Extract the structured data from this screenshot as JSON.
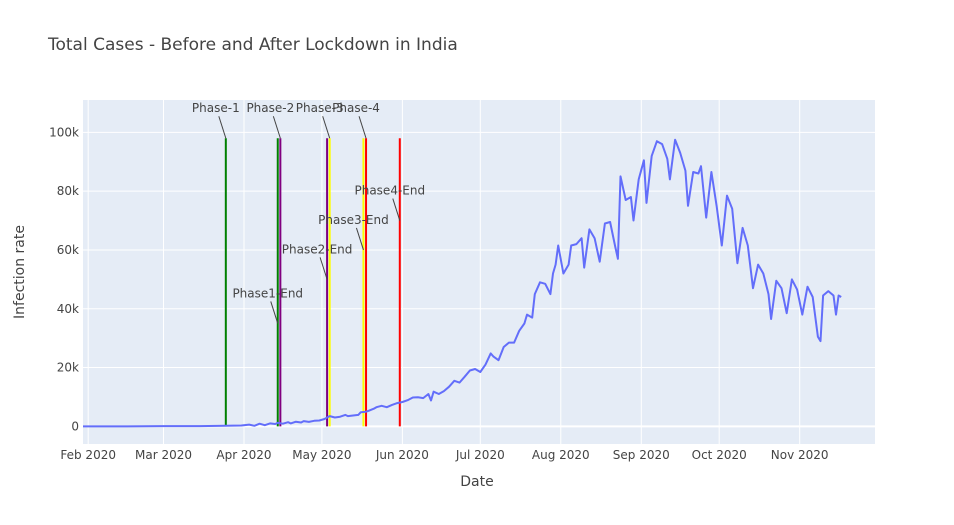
{
  "chart_data": {
    "type": "line",
    "title": "Total Cases - Before and After Lockdown in India",
    "xlabel": "Date",
    "ylabel": "Infection rate",
    "xlim": [
      "2020-01-30",
      "2020-11-30"
    ],
    "ylim": [
      -6000,
      111000
    ],
    "grid": true,
    "colors": {
      "background": "#E5ECF6",
      "series": "#636EFA",
      "grid": "#ffffff"
    },
    "x_ticks": [
      {
        "date": "2020-02-01",
        "label": "Feb 2020"
      },
      {
        "date": "2020-03-01",
        "label": "Mar 2020"
      },
      {
        "date": "2020-04-01",
        "label": "Apr 2020"
      },
      {
        "date": "2020-05-01",
        "label": "May 2020"
      },
      {
        "date": "2020-06-01",
        "label": "Jun 2020"
      },
      {
        "date": "2020-07-01",
        "label": "Jul 2020"
      },
      {
        "date": "2020-08-01",
        "label": "Aug 2020"
      },
      {
        "date": "2020-09-01",
        "label": "Sep 2020"
      },
      {
        "date": "2020-10-01",
        "label": "Oct 2020"
      },
      {
        "date": "2020-11-01",
        "label": "Nov 2020"
      }
    ],
    "y_ticks": [
      {
        "value": 0,
        "label": "0"
      },
      {
        "value": 20000,
        "label": "20k"
      },
      {
        "value": 40000,
        "label": "40k"
      },
      {
        "value": 60000,
        "label": "60k"
      },
      {
        "value": 80000,
        "label": "80k"
      },
      {
        "value": 100000,
        "label": "100k"
      }
    ],
    "series": [
      {
        "points": [
          [
            "2020-01-30",
            0
          ],
          [
            "2020-02-15",
            0
          ],
          [
            "2020-03-01",
            100
          ],
          [
            "2020-03-15",
            100
          ],
          [
            "2020-03-25",
            200
          ],
          [
            "2020-03-31",
            300
          ],
          [
            "2020-04-03",
            600
          ],
          [
            "2020-04-05",
            200
          ],
          [
            "2020-04-07",
            900
          ],
          [
            "2020-04-09",
            400
          ],
          [
            "2020-04-11",
            1000
          ],
          [
            "2020-04-13",
            800
          ],
          [
            "2020-04-14",
            1200
          ],
          [
            "2020-04-16",
            900
          ],
          [
            "2020-04-18",
            1400
          ],
          [
            "2020-04-19",
            1000
          ],
          [
            "2020-04-21",
            1600
          ],
          [
            "2020-04-23",
            1300
          ],
          [
            "2020-04-24",
            1800
          ],
          [
            "2020-04-26",
            1500
          ],
          [
            "2020-04-28",
            1900
          ],
          [
            "2020-04-30",
            2000
          ],
          [
            "2020-05-02",
            2500
          ],
          [
            "2020-05-04",
            3500
          ],
          [
            "2020-05-06",
            3000
          ],
          [
            "2020-05-08",
            3300
          ],
          [
            "2020-05-10",
            3900
          ],
          [
            "2020-05-11",
            3500
          ],
          [
            "2020-05-13",
            3700
          ],
          [
            "2020-05-15",
            3900
          ],
          [
            "2020-05-16",
            4800
          ],
          [
            "2020-05-18",
            5000
          ],
          [
            "2020-05-19",
            5300
          ],
          [
            "2020-05-21",
            6000
          ],
          [
            "2020-05-22",
            6500
          ],
          [
            "2020-05-24",
            7000
          ],
          [
            "2020-05-26",
            6500
          ],
          [
            "2020-05-28",
            7300
          ],
          [
            "2020-05-30",
            7900
          ],
          [
            "2020-06-01",
            8300
          ],
          [
            "2020-06-03",
            8900
          ],
          [
            "2020-06-05",
            9800
          ],
          [
            "2020-06-07",
            9900
          ],
          [
            "2020-06-09",
            9600
          ],
          [
            "2020-06-11",
            11000
          ],
          [
            "2020-06-12",
            8800
          ],
          [
            "2020-06-13",
            11800
          ],
          [
            "2020-06-15",
            11000
          ],
          [
            "2020-06-17",
            12000
          ],
          [
            "2020-06-19",
            13500
          ],
          [
            "2020-06-21",
            15500
          ],
          [
            "2020-06-23",
            14900
          ],
          [
            "2020-06-25",
            16900
          ],
          [
            "2020-06-27",
            19000
          ],
          [
            "2020-06-29",
            19500
          ],
          [
            "2020-07-01",
            18500
          ],
          [
            "2020-07-03",
            21000
          ],
          [
            "2020-07-05",
            24800
          ],
          [
            "2020-07-06",
            23800
          ],
          [
            "2020-07-08",
            22500
          ],
          [
            "2020-07-10",
            27000
          ],
          [
            "2020-07-12",
            28500
          ],
          [
            "2020-07-14",
            28500
          ],
          [
            "2020-07-16",
            32500
          ],
          [
            "2020-07-18",
            35000
          ],
          [
            "2020-07-19",
            38000
          ],
          [
            "2020-07-21",
            37000
          ],
          [
            "2020-07-22",
            45000
          ],
          [
            "2020-07-24",
            49000
          ],
          [
            "2020-07-26",
            48500
          ],
          [
            "2020-07-28",
            45000
          ],
          [
            "2020-07-29",
            52000
          ],
          [
            "2020-07-30",
            55000
          ],
          [
            "2020-07-31",
            61500
          ],
          [
            "2020-08-02",
            52000
          ],
          [
            "2020-08-04",
            55000
          ],
          [
            "2020-08-05",
            61500
          ],
          [
            "2020-08-07",
            62000
          ],
          [
            "2020-08-09",
            64000
          ],
          [
            "2020-08-10",
            54000
          ],
          [
            "2020-08-12",
            67000
          ],
          [
            "2020-08-14",
            64000
          ],
          [
            "2020-08-16",
            56000
          ],
          [
            "2020-08-18",
            69000
          ],
          [
            "2020-08-20",
            69500
          ],
          [
            "2020-08-22",
            61000
          ],
          [
            "2020-08-23",
            57000
          ],
          [
            "2020-08-24",
            85000
          ],
          [
            "2020-08-26",
            77000
          ],
          [
            "2020-08-28",
            78000
          ],
          [
            "2020-08-29",
            70000
          ],
          [
            "2020-08-31",
            84000
          ],
          [
            "2020-09-02",
            90500
          ],
          [
            "2020-09-03",
            76000
          ],
          [
            "2020-09-05",
            92000
          ],
          [
            "2020-09-07",
            97000
          ],
          [
            "2020-09-09",
            96000
          ],
          [
            "2020-09-11",
            91000
          ],
          [
            "2020-09-12",
            84000
          ],
          [
            "2020-09-14",
            97500
          ],
          [
            "2020-09-16",
            93000
          ],
          [
            "2020-09-18",
            87000
          ],
          [
            "2020-09-19",
            75000
          ],
          [
            "2020-09-21",
            86500
          ],
          [
            "2020-09-23",
            86000
          ],
          [
            "2020-09-24",
            88500
          ],
          [
            "2020-09-26",
            71000
          ],
          [
            "2020-09-28",
            86500
          ],
          [
            "2020-09-30",
            75000
          ],
          [
            "2020-10-02",
            61500
          ],
          [
            "2020-10-04",
            78500
          ],
          [
            "2020-10-06",
            74000
          ],
          [
            "2020-10-08",
            55500
          ],
          [
            "2020-10-10",
            67500
          ],
          [
            "2020-10-12",
            61500
          ],
          [
            "2020-10-14",
            47000
          ],
          [
            "2020-10-16",
            55000
          ],
          [
            "2020-10-18",
            52000
          ],
          [
            "2020-10-20",
            45000
          ],
          [
            "2020-10-21",
            36500
          ],
          [
            "2020-10-23",
            49500
          ],
          [
            "2020-10-25",
            47000
          ],
          [
            "2020-10-27",
            38500
          ],
          [
            "2020-10-29",
            50000
          ],
          [
            "2020-10-31",
            46500
          ],
          [
            "2020-11-02",
            38000
          ],
          [
            "2020-11-04",
            47500
          ],
          [
            "2020-11-06",
            44000
          ],
          [
            "2020-11-08",
            30500
          ],
          [
            "2020-11-09",
            29000
          ],
          [
            "2020-11-10",
            44500
          ],
          [
            "2020-11-12",
            46000
          ],
          [
            "2020-11-14",
            44500
          ],
          [
            "2020-11-15",
            38000
          ],
          [
            "2020-11-16",
            44500
          ],
          [
            "2020-11-17",
            44000
          ]
        ]
      }
    ],
    "phase_lines": [
      {
        "date": "2020-03-25",
        "color": "green"
      },
      {
        "date": "2020-04-14",
        "color": "green"
      },
      {
        "date": "2020-04-15",
        "color": "purple"
      },
      {
        "date": "2020-05-03",
        "color": "purple"
      },
      {
        "date": "2020-05-04",
        "color": "yellow"
      },
      {
        "date": "2020-05-17",
        "color": "yellow"
      },
      {
        "date": "2020-05-18",
        "color": "red"
      },
      {
        "date": "2020-05-31",
        "color": "red"
      }
    ],
    "phase_line_top": 98000,
    "annotations": [
      {
        "text": "Phase-1",
        "date": "2020-03-25",
        "y": 98000
      },
      {
        "text": "Phase-2",
        "date": "2020-04-15",
        "y": 98000
      },
      {
        "text": "Phase-3",
        "date": "2020-05-04",
        "y": 98000
      },
      {
        "text": "Phase-4",
        "date": "2020-05-18",
        "y": 98000
      },
      {
        "text": "Phase1-End",
        "date": "2020-04-14",
        "y": 35000
      },
      {
        "text": "Phase2-End",
        "date": "2020-05-03",
        "y": 50000
      },
      {
        "text": "Phase3-End",
        "date": "2020-05-17",
        "y": 60000
      },
      {
        "text": "Phase4-End",
        "date": "2020-05-31",
        "y": 70000
      }
    ]
  }
}
